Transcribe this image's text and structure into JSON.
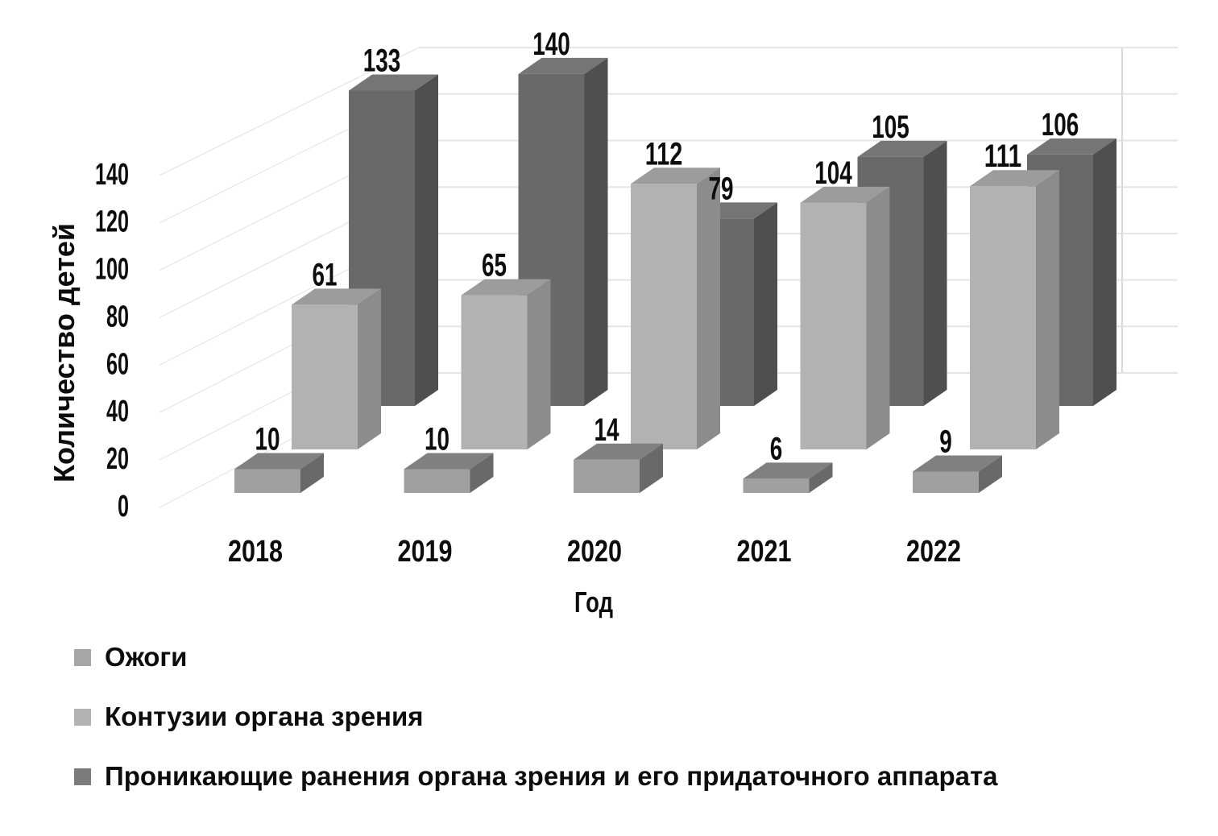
{
  "chart_data": {
    "type": "bar",
    "subtype": "3d-column-clustered",
    "title": "",
    "categories": [
      "2018",
      "2019",
      "2020",
      "2021",
      "2022"
    ],
    "series": [
      {
        "name": "Ожоги",
        "values": [
          10,
          10,
          14,
          6,
          9
        ],
        "color_front": "#a0a0a0",
        "color_top": "#808080",
        "color_side": "#696969",
        "color_legend": "#a6a6a6"
      },
      {
        "name": "Контузии органа зрения",
        "values": [
          61,
          65,
          112,
          104,
          111
        ],
        "color_front": "#b2b2b2",
        "color_top": "#9c9c9c",
        "color_side": "#8c8c8c",
        "color_legend": "#b3b3b3"
      },
      {
        "name": "Проникающие ранения органа зрения и его придаточного аппарата",
        "values": [
          133,
          140,
          79,
          105,
          106
        ],
        "color_front": "#696969",
        "color_top": "#757575",
        "color_side": "#4f4f4f",
        "color_legend": "#7b7b7b"
      }
    ],
    "xlabel": "Год",
    "ylabel": "Количество детей",
    "yticks": [
      0,
      20,
      40,
      60,
      80,
      100,
      120,
      140
    ],
    "ylim": [
      0,
      140
    ],
    "grid": true,
    "legend_position": "bottom-left",
    "text_color": "#0d0d0d",
    "gridline_color": "#e5e5e5",
    "background_color": "#ffffff"
  }
}
